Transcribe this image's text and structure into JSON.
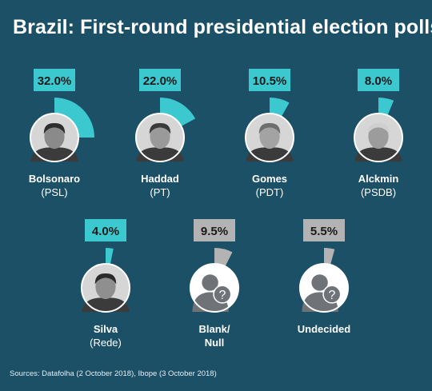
{
  "title": "Brazil: First-round presidential election polls",
  "source": "Sources: Datafolha (2 October 2018), Ibope (3 October 2018)",
  "colors": {
    "background": "#1b5067",
    "candidate_accent": "#3cc8cf",
    "neutral_accent": "#b3b3b3"
  },
  "chart_data": {
    "type": "radial-bar",
    "unit": "%",
    "max_value": 32.0,
    "items": [
      {
        "name": "Bolsonaro",
        "party": "(PSL)",
        "value": 32.0,
        "label": "32.0%",
        "kind": "candidate",
        "icon": "bolsonaro-photo"
      },
      {
        "name": "Haddad",
        "party": "(PT)",
        "value": 22.0,
        "label": "22.0%",
        "kind": "candidate",
        "icon": "haddad-photo"
      },
      {
        "name": "Gomes",
        "party": "(PDT)",
        "value": 10.5,
        "label": "10.5%",
        "kind": "candidate",
        "icon": "gomes-photo"
      },
      {
        "name": "Alckmin",
        "party": "(PSDB)",
        "value": 8.0,
        "label": "8.0%",
        "kind": "candidate",
        "icon": "alckmin-photo"
      },
      {
        "name": "Silva",
        "party": "(Rede)",
        "value": 4.0,
        "label": "4.0%",
        "kind": "candidate",
        "icon": "silva-photo"
      },
      {
        "name": "Blank/",
        "party": "Null",
        "value": 9.5,
        "label": "9.5%",
        "kind": "other",
        "icon": "question-person-icon"
      },
      {
        "name": "Undecided",
        "party": "",
        "value": 5.5,
        "label": "5.5%",
        "kind": "other",
        "icon": "question-person-icon"
      }
    ]
  }
}
